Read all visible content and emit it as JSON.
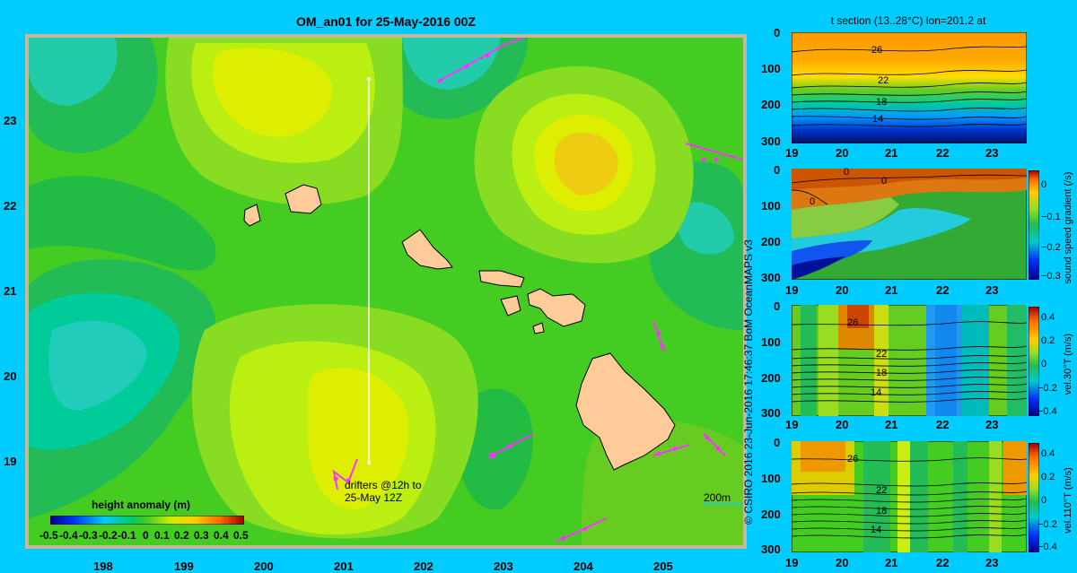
{
  "map": {
    "title": "OM_an01 for 25-May-2016 00Z",
    "x_ticks": [
      "198",
      "199",
      "200",
      "201",
      "202",
      "203",
      "204",
      "205"
    ],
    "y_ticks": [
      "23",
      "22",
      "21",
      "20",
      "19"
    ],
    "drifter_label_1": "drifters @12h to",
    "drifter_label_2": "25-May 12Z",
    "depth_label": "200m",
    "colorbar": {
      "title": "height anomaly  (m)",
      "ticks": [
        "-0.5",
        "-0.4",
        "-0.3",
        "-0.2",
        "-0.1",
        "0",
        "0.1",
        "0.2",
        "0.3",
        "0.4",
        "0.5"
      ]
    }
  },
  "credit": "© CSIRO 2016   23-Jun-2016 17:46:37 BoM OceanMAPS v3",
  "sections": {
    "title": "t section (13..28°C) lon=201.2 at",
    "x_ticks": [
      "19",
      "20",
      "21",
      "22",
      "23"
    ],
    "depth_ticks": [
      "0",
      "100",
      "200",
      "300"
    ],
    "panel1": {
      "contours": [
        "26",
        "22",
        "18",
        "14"
      ]
    },
    "panel2": {
      "contours": [
        "0",
        "0",
        "0"
      ],
      "cbar_label": "sound speed gradient (/s)",
      "cbar_ticks": [
        "0",
        "−0.1",
        "−0.2",
        "−0.3"
      ]
    },
    "panel3": {
      "contours": [
        "26",
        "22",
        "18",
        "14"
      ],
      "cbar_label": "vel.30°T (m/s)",
      "cbar_ticks": [
        "0.4",
        "0.2",
        "0",
        "−0.2",
        "−0.4"
      ]
    },
    "panel4": {
      "contours": [
        "26",
        "22",
        "18",
        "14"
      ],
      "cbar_label": "vel.110°T (m/s)",
      "cbar_ticks": [
        "0.4",
        "0.2",
        "0",
        "−0.2",
        "−0.4"
      ]
    }
  },
  "colors": {
    "background": "#00ccff",
    "land": "#ffcc99",
    "drifter": "#ff33ff"
  },
  "chart_data": [
    {
      "type": "heatmap",
      "title": "OM_an01 for 25-May-2016 00Z",
      "variable": "height anomaly (m)",
      "xlim": [
        197.1,
        205.9
      ],
      "ylim": [
        18.2,
        24.0
      ],
      "x_ticks": [
        198,
        199,
        200,
        201,
        202,
        203,
        204,
        205
      ],
      "y_ticks": [
        19,
        20,
        21,
        22,
        23
      ],
      "color_range": [
        -0.5,
        0.5
      ],
      "section_longitude": 201.2
    },
    {
      "type": "heatmap",
      "title": "t section (13..28°C) lon=201.2 at",
      "xlim": [
        19,
        23.6
      ],
      "ylim": [
        300,
        0
      ],
      "contour_levels": [
        26,
        22,
        18,
        14
      ]
    },
    {
      "type": "heatmap",
      "variable": "sound speed gradient (/s)",
      "xlim": [
        19,
        23.6
      ],
      "ylim": [
        300,
        0
      ],
      "color_range": [
        -0.3,
        0.03
      ],
      "contour_levels": [
        0
      ]
    },
    {
      "type": "heatmap",
      "variable": "vel.30°T (m/s)",
      "xlim": [
        19,
        23.6
      ],
      "ylim": [
        300,
        0
      ],
      "color_range": [
        -0.4,
        0.45
      ],
      "contour_levels": [
        26,
        22,
        18,
        14
      ]
    },
    {
      "type": "heatmap",
      "variable": "vel.110°T (m/s)",
      "xlim": [
        19,
        23.6
      ],
      "ylim": [
        300,
        0
      ],
      "color_range": [
        -0.4,
        0.45
      ],
      "contour_levels": [
        26,
        22,
        18,
        14
      ]
    }
  ]
}
